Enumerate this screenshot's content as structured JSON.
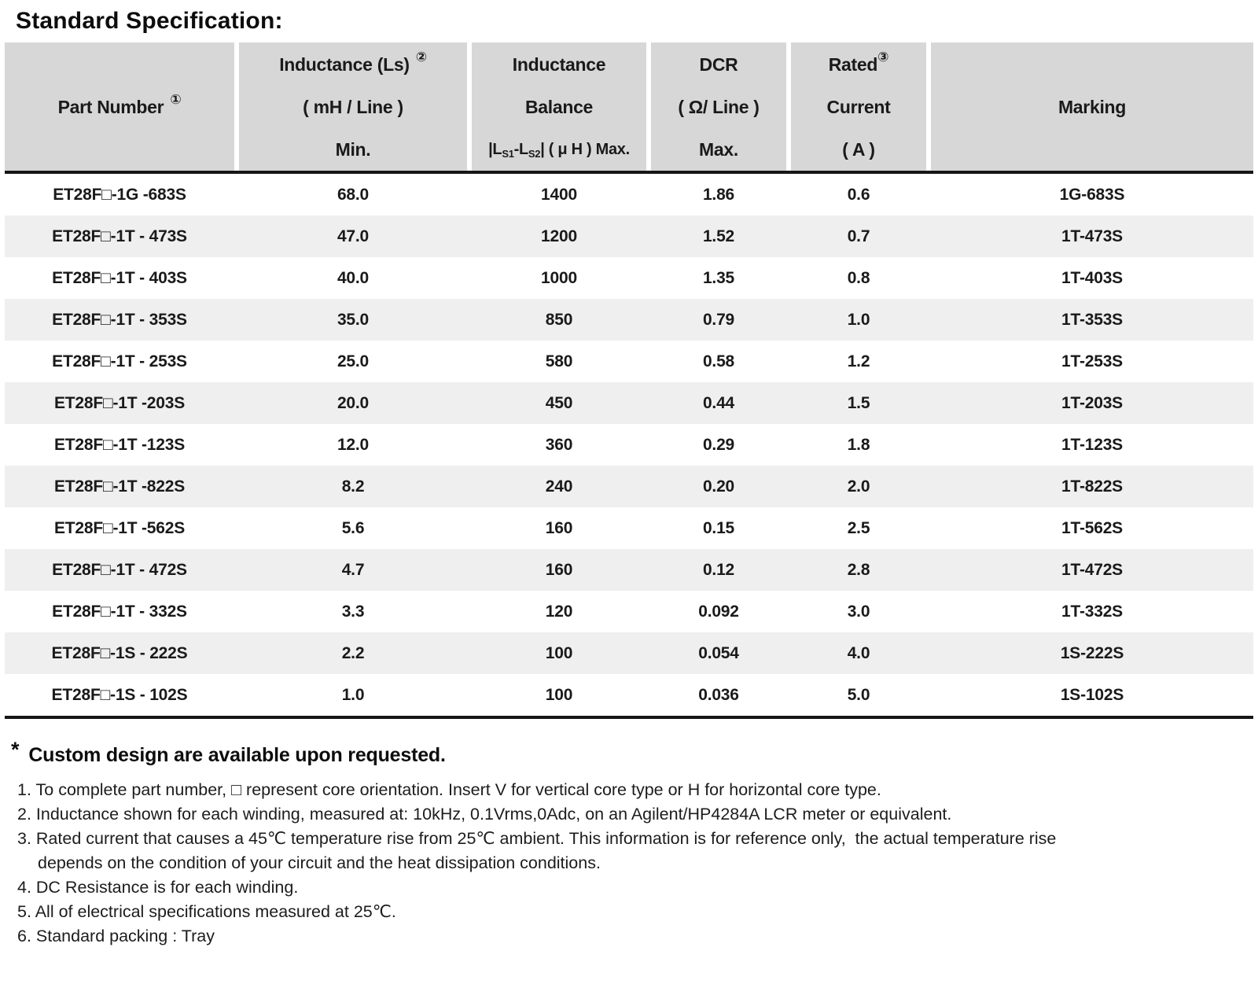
{
  "title": "Standard Specification:",
  "table": {
    "header": {
      "col1": {
        "text": "Part Number",
        "sup": "①"
      },
      "col2": {
        "line1": "Inductance (Ls)",
        "sup": "②",
        "line2": "( mH / Line )",
        "line3": "Min."
      },
      "col3": {
        "line1": "Inductance",
        "line2": "Balance",
        "line3": {
          "p1": "|L",
          "s1": "S1",
          "p2": "-L",
          "s2": "S2",
          "p3": "| ( μ H ) Max."
        }
      },
      "col4": {
        "line1": "DCR",
        "line2": "( Ω/ Line )",
        "line3": "Max."
      },
      "col5": {
        "line1": "Rated",
        "sup": "③",
        "line2": "Current",
        "line3": "( A )"
      },
      "col6": {
        "text": "Marking"
      }
    },
    "rows": [
      [
        "ET28F□-1G -683S",
        "68.0",
        "1400",
        "1.86",
        "0.6",
        "1G-683S"
      ],
      [
        "ET28F□-1T - 473S",
        "47.0",
        "1200",
        "1.52",
        "0.7",
        "1T-473S"
      ],
      [
        "ET28F□-1T - 403S",
        "40.0",
        "1000",
        "1.35",
        "0.8",
        "1T-403S"
      ],
      [
        "ET28F□-1T - 353S",
        "35.0",
        "850",
        "0.79",
        "1.0",
        "1T-353S"
      ],
      [
        "ET28F□-1T - 253S",
        "25.0",
        "580",
        "0.58",
        "1.2",
        "1T-253S"
      ],
      [
        "ET28F□-1T -203S",
        "20.0",
        "450",
        "0.44",
        "1.5",
        "1T-203S"
      ],
      [
        "ET28F□-1T -123S",
        "12.0",
        "360",
        "0.29",
        "1.8",
        "1T-123S"
      ],
      [
        "ET28F□-1T -822S",
        "8.2",
        "240",
        "0.20",
        "2.0",
        "1T-822S"
      ],
      [
        "ET28F□-1T -562S",
        "5.6",
        "160",
        "0.15",
        "2.5",
        "1T-562S"
      ],
      [
        "ET28F□-1T - 472S",
        "4.7",
        "160",
        "0.12",
        "2.8",
        "1T-472S"
      ],
      [
        "ET28F□-1T - 332S",
        "3.3",
        "120",
        "0.092",
        "3.0",
        "1T-332S"
      ],
      [
        "ET28F□-1S - 222S",
        "2.2",
        "100",
        "0.054",
        "4.0",
        "1S-222S"
      ],
      [
        "ET28F□-1S - 102S",
        "1.0",
        "100",
        "0.036",
        "5.0",
        "1S-102S"
      ]
    ]
  },
  "footer": {
    "star": "*",
    "custom_note": "Custom design are available upon requested.",
    "notes": [
      {
        "text": "1. To complete part number, □ represent core orientation. Insert V for vertical core type or H for horizontal core type.",
        "indent": false
      },
      {
        "text": "2. Inductance shown for each winding, measured at: 10kHz, 0.1Vrms,0Adc, on an Agilent/HP4284A LCR meter or equivalent.",
        "indent": false
      },
      {
        "text": "3. Rated current that causes a 45℃ temperature rise from 25℃ ambient. This information is for reference only,  the actual temperature rise",
        "indent": false
      },
      {
        "text": "depends on the condition of your circuit and the heat dissipation conditions.",
        "indent": true
      },
      {
        "text": "4. DC Resistance is for each winding.",
        "indent": false
      },
      {
        "text": "5. All of electrical specifications measured at 25℃.",
        "indent": false
      },
      {
        "text": "6. Standard packing : Tray",
        "indent": false
      }
    ]
  }
}
